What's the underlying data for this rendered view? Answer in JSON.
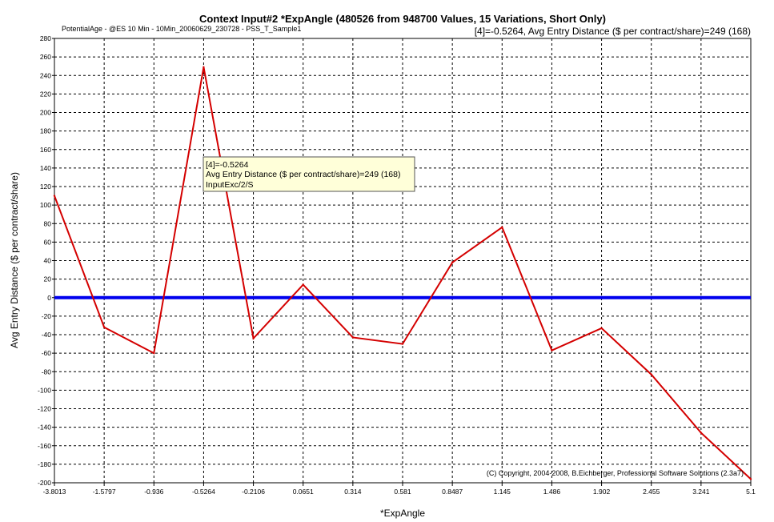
{
  "chart_data": {
    "type": "line",
    "title": "Context Input#2 *ExpAngle (480526 from 948700 Values, 15 Variations, Short Only)",
    "subtitle": "PotentialAge - @ES 10 Min - 10Min_20060629_230728 - PSS_T_Sample1",
    "readout": "[4]=-0.5264,   Avg Entry Distance  ($ per contract/share)=249 (168)",
    "xlabel": "*ExpAngle",
    "ylabel": "Avg Entry Distance  ($ per contract/share)",
    "categories": [
      "-3.8013",
      "-1.5797",
      "-0.936",
      "-0.5264",
      "-0.2106",
      "0.0651",
      "0.314",
      "0.581",
      "0.8487",
      "1.145",
      "1.486",
      "1.902",
      "2.455",
      "3.241",
      "5.1"
    ],
    "values": [
      110,
      -32,
      -60,
      249,
      -44,
      14,
      -43,
      -50,
      38,
      76,
      -57,
      -33,
      -83,
      -146,
      -196
    ],
    "ylim": [
      -200,
      280
    ],
    "ytick_step": 20,
    "grid": true,
    "line_color": "#d40000",
    "baseline_value": 0,
    "baseline_color": "#0000ee",
    "tooltip": {
      "point_index": 3,
      "lines": [
        "[4]=-0.5264",
        "Avg Entry Distance  ($ per contract/share)=249 (168)",
        "InputExc/2/S"
      ]
    },
    "copyright": "(C) Copyright, 2004-2008, B.Eichberger, Professional Software Solutions (2.3a7)"
  }
}
